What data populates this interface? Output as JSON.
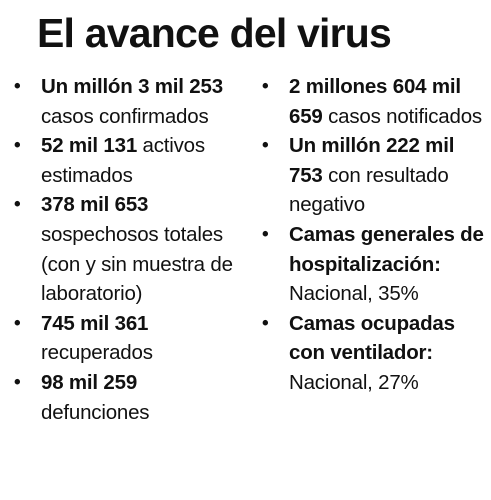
{
  "title": "El avance del virus",
  "bullet_glyph": "•",
  "left_column": [
    {
      "strong": "Un millón 3 mil 253",
      "text": " casos confirmados"
    },
    {
      "strong": "52 mil 131",
      "text": " activos estimados"
    },
    {
      "strong": "378 mil 653",
      "text": " sospechosos totales (con y sin muestra de laboratorio)"
    },
    {
      "strong": "745 mil 361",
      "text": " recuperados"
    },
    {
      "strong": "98 mil 259",
      "text": " defunciones"
    }
  ],
  "right_column": [
    {
      "strong": "2 millones 604 mil 659",
      "text": " casos notificados"
    },
    {
      "strong": "Un millón 222 mil 753",
      "text": " con resultado negativo"
    },
    {
      "strong": "Camas generales de hospitalización:",
      "text": " Nacional, 35%"
    },
    {
      "strong": "Camas ocupadas con ventilador:",
      "text": " Nacional, 27%"
    }
  ]
}
